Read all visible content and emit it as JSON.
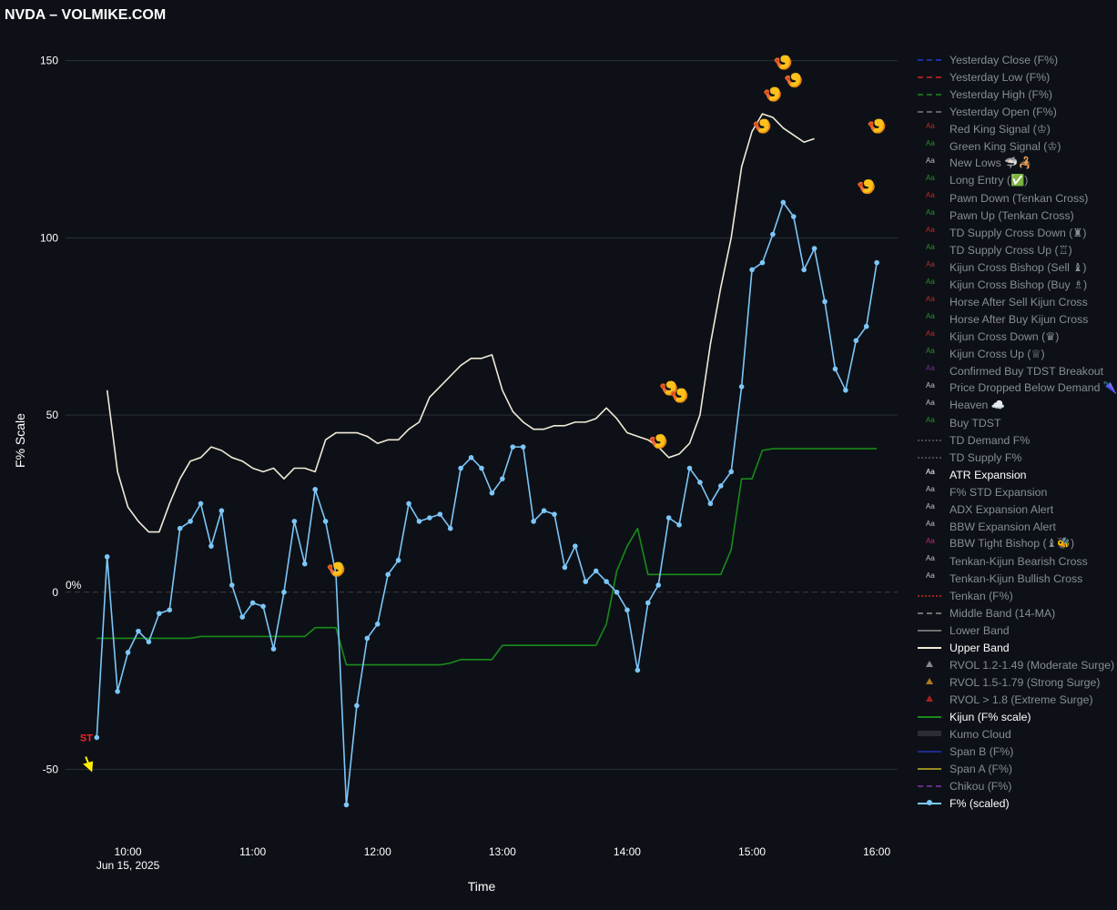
{
  "title": "NVDA – VOLMIKE.COM",
  "chart_data": {
    "type": "line",
    "title": "NVDA – VOLMIKE.COM",
    "xlabel": "Time",
    "ylabel": "F% Scale",
    "ylim": [
      -64,
      153
    ],
    "xlim": [
      "09:30",
      "16:10"
    ],
    "yticks": [
      -50,
      0,
      50,
      100,
      150
    ],
    "xticks": [
      "10:00",
      "11:00",
      "12:00",
      "13:00",
      "14:00",
      "15:00",
      "16:00"
    ],
    "xtick_sublabel": "Jun 15, 2025",
    "zero_label": "0%",
    "grid": true,
    "legend_position": "right",
    "series": [
      {
        "name": "F% (scaled)",
        "color": "#7dc6f8",
        "markers": true,
        "x": [
          "09:45",
          "09:50",
          "09:55",
          "10:00",
          "10:05",
          "10:10",
          "10:15",
          "10:20",
          "10:25",
          "10:30",
          "10:35",
          "10:40",
          "10:45",
          "10:50",
          "10:55",
          "11:00",
          "11:05",
          "11:10",
          "11:15",
          "11:20",
          "11:25",
          "11:30",
          "11:35",
          "11:40",
          "11:45",
          "11:50",
          "11:55",
          "12:00",
          "12:05",
          "12:10",
          "12:15",
          "12:20",
          "12:25",
          "12:30",
          "12:35",
          "12:40",
          "12:45",
          "12:50",
          "12:55",
          "13:00",
          "13:05",
          "13:10",
          "13:15",
          "13:20",
          "13:25",
          "13:30",
          "13:35",
          "13:40",
          "13:45",
          "13:50",
          "13:55",
          "14:00",
          "14:05",
          "14:10",
          "14:15",
          "14:20",
          "14:25",
          "14:30",
          "14:35",
          "14:40",
          "14:45",
          "14:50",
          "14:55",
          "15:00",
          "15:05",
          "15:10",
          "15:15",
          "15:20",
          "15:25",
          "15:30",
          "15:35",
          "15:40",
          "15:45",
          "15:50",
          "15:55",
          "16:00",
          "16:05",
          "16:10",
          "16:15",
          "16:20"
        ],
        "values": [
          -41,
          10,
          -28,
          -17,
          -11,
          -14,
          -6,
          -5,
          18,
          20,
          25,
          13,
          23,
          2,
          -7,
          -3,
          -4,
          -16,
          0,
          20,
          8,
          29,
          20,
          5,
          -60,
          -32,
          -13,
          -9,
          5,
          9,
          25,
          20,
          21,
          22,
          18,
          35,
          38,
          35,
          28,
          32,
          41,
          41,
          20,
          23,
          22,
          7,
          13,
          3,
          6,
          3,
          0,
          -5,
          -22,
          -3,
          2,
          21,
          19,
          35,
          31,
          25,
          30,
          34,
          58,
          91,
          93,
          101,
          110,
          106,
          91,
          97,
          82,
          63,
          57,
          71,
          75,
          93,
          null,
          null,
          null,
          null
        ]
      },
      {
        "name": "Upper Band",
        "color": "#f1ead7",
        "markers": false,
        "x": [
          "09:50",
          "09:55",
          "10:00",
          "10:05",
          "10:10",
          "10:15",
          "10:20",
          "10:25",
          "10:30",
          "10:35",
          "10:40",
          "10:45",
          "10:50",
          "10:55",
          "11:00",
          "11:05",
          "11:10",
          "11:15",
          "11:20",
          "11:25",
          "11:30",
          "11:35",
          "11:40",
          "11:45",
          "11:50",
          "11:55",
          "12:00",
          "12:05",
          "12:10",
          "12:15",
          "12:20",
          "12:25",
          "12:30",
          "12:35",
          "12:40",
          "12:45",
          "12:50",
          "12:55",
          "13:00",
          "13:05",
          "13:10",
          "13:15",
          "13:20",
          "13:25",
          "13:30",
          "13:35",
          "13:40",
          "13:45",
          "13:50",
          "13:55",
          "14:00",
          "14:05",
          "14:10",
          "14:15",
          "14:20",
          "14:25",
          "14:30",
          "14:35",
          "14:40",
          "14:45",
          "14:50",
          "14:55",
          "15:00",
          "15:05",
          "15:10",
          "15:15",
          "15:20",
          "15:25",
          "15:30",
          "15:35",
          "15:40",
          "15:45",
          "15:50",
          "15:55",
          "16:00"
        ],
        "values": [
          57,
          34,
          24,
          20,
          17,
          17,
          25,
          32,
          37,
          38,
          41,
          40,
          38,
          37,
          35,
          34,
          35,
          32,
          35,
          35,
          34,
          43,
          45,
          45,
          45,
          44,
          42,
          43,
          43,
          46,
          48,
          55,
          58,
          61,
          64,
          66,
          66,
          67,
          57,
          51,
          48,
          46,
          46,
          47,
          47,
          48,
          48,
          49,
          52,
          49,
          45,
          44,
          43,
          41,
          38,
          39,
          42,
          50,
          70,
          86,
          100,
          120,
          130,
          135,
          134,
          131,
          129,
          127,
          128,
          null,
          null,
          null,
          null,
          null,
          null
        ]
      },
      {
        "name": "Kijun (F% scale)",
        "color": "#1a8a1a",
        "markers": false,
        "x": [
          "09:45",
          "10:30",
          "10:35",
          "11:00",
          "11:25",
          "11:30",
          "11:35",
          "11:40",
          "11:45",
          "12:30",
          "12:35",
          "12:40",
          "12:45",
          "12:50",
          "12:55",
          "13:00",
          "13:05",
          "13:10",
          "13:15",
          "13:20",
          "13:25",
          "13:30",
          "13:35",
          "13:40",
          "13:45",
          "13:50",
          "13:55",
          "14:00",
          "14:05",
          "14:10",
          "14:15",
          "14:20",
          "14:25",
          "14:30",
          "14:35",
          "14:40",
          "14:45",
          "14:50",
          "14:55",
          "15:00",
          "15:05",
          "15:10",
          "15:15",
          "16:00"
        ],
        "values": [
          -13,
          -13,
          -12.5,
          -12.5,
          -12.5,
          -10,
          -10,
          -10,
          -20.5,
          -20.5,
          -20,
          -19,
          -19,
          -19,
          -19,
          -15,
          -15,
          -15,
          -15,
          -15,
          -15,
          -15,
          -15,
          -15,
          -15,
          -9,
          6,
          13,
          18,
          5,
          5,
          5,
          5,
          5,
          5,
          5,
          5,
          12,
          32,
          32,
          40,
          40.5,
          40.5,
          40.5
        ]
      }
    ],
    "zero_line": {
      "name": "Middle Band (14-MA)",
      "y": 0,
      "style": "dashed"
    },
    "annotations": [
      {
        "text": "ST",
        "x": "09:40",
        "y": -42,
        "color": "#ff2222"
      },
      {
        "type": "arrow",
        "x": "09:41",
        "y": -50,
        "color": "#ffee00"
      },
      {
        "type": "icon",
        "symbol": "🍤",
        "x": "11:40",
        "y": 5
      },
      {
        "type": "icon",
        "symbol": "🍤",
        "x": "14:15",
        "y": 41
      },
      {
        "type": "icon",
        "symbol": "🍤",
        "x": "14:20",
        "y": 56
      },
      {
        "type": "icon",
        "symbol": "🍤",
        "x": "14:25",
        "y": 54
      },
      {
        "type": "icon",
        "symbol": "🍤",
        "x": "15:05",
        "y": 130
      },
      {
        "type": "icon",
        "symbol": "🍤",
        "x": "15:10",
        "y": 139
      },
      {
        "type": "icon",
        "symbol": "🍤",
        "x": "15:15",
        "y": 148
      },
      {
        "type": "icon",
        "symbol": "🍤",
        "x": "15:20",
        "y": 143
      },
      {
        "type": "icon",
        "symbol": "🍤",
        "x": "15:55",
        "y": 113
      },
      {
        "type": "icon",
        "symbol": "🍤",
        "x": "16:00",
        "y": 130
      }
    ]
  },
  "legend": [
    {
      "label": "Yesterday Close (F%)",
      "sym": "dash",
      "color": "#1f2fa8",
      "on": false
    },
    {
      "label": "Yesterday Low (F%)",
      "sym": "dash",
      "color": "#a02020",
      "on": false
    },
    {
      "label": "Yesterday High (F%)",
      "sym": "dash",
      "color": "#1d6b1d",
      "on": false
    },
    {
      "label": "Yesterday Open (F%)",
      "sym": "dash",
      "color": "#606060",
      "on": false
    },
    {
      "label": "Red King Signal (♔)",
      "sym": "aa",
      "color": "#c02828",
      "on": false
    },
    {
      "label": "Green King Signal (♔)",
      "sym": "aa",
      "color": "#2a8f2a",
      "on": false
    },
    {
      "label": "New Lows 🦈🦂",
      "sym": "aa",
      "color": "#c0c0c0",
      "on": false
    },
    {
      "label": "Long Entry (✅)",
      "sym": "aa",
      "color": "#2a8f2a",
      "on": false
    },
    {
      "label": "Pawn Down (Tenkan Cross)",
      "sym": "aa",
      "color": "#c02828",
      "on": false
    },
    {
      "label": "Pawn Up (Tenkan Cross)",
      "sym": "aa",
      "color": "#2a8f2a",
      "on": false
    },
    {
      "label": "TD Supply Cross Down (♜)",
      "sym": "aa",
      "color": "#c02828",
      "on": false
    },
    {
      "label": "TD Supply Cross Up (♖)",
      "sym": "aa",
      "color": "#2a8f2a",
      "on": false
    },
    {
      "label": "Kijun Cross Bishop (Sell ♝)",
      "sym": "aa",
      "color": "#c02828",
      "on": false
    },
    {
      "label": "Kijun Cross Bishop (Buy ♗)",
      "sym": "aa",
      "color": "#2a8f2a",
      "on": false
    },
    {
      "label": "Horse After Sell Kijun Cross",
      "sym": "aa",
      "color": "#c02828",
      "on": false
    },
    {
      "label": "Horse After Buy Kijun Cross",
      "sym": "aa",
      "color": "#2a8f2a",
      "on": false
    },
    {
      "label": "Kijun Cross Down (♛)",
      "sym": "aa",
      "color": "#c02828",
      "on": false
    },
    {
      "label": "Kijun Cross Up (♕)",
      "sym": "aa",
      "color": "#2a8f2a",
      "on": false
    },
    {
      "label": "Confirmed Buy TDST Breakout",
      "sym": "aa",
      "color": "#7a2a9a",
      "on": false
    },
    {
      "label": "Price Dropped Below Demand 🌂",
      "sym": "aa",
      "color": "#c0c0c0",
      "on": false
    },
    {
      "label": "Heaven ☁️",
      "sym": "aa",
      "color": "#c0c0c0",
      "on": false
    },
    {
      "label": "Buy TDST",
      "sym": "aa",
      "color": "#2a8f2a",
      "on": false
    },
    {
      "label": "TD Demand F%",
      "sym": "dot",
      "color": "#4a4a4a",
      "on": false
    },
    {
      "label": "TD Supply F%",
      "sym": "dot",
      "color": "#4a4a4a",
      "on": false
    },
    {
      "label": "ATR Expansion",
      "sym": "aa",
      "color": "#ffffff",
      "on": true
    },
    {
      "label": "F% STD Expansion",
      "sym": "aa",
      "color": "#c0c0c0",
      "on": false
    },
    {
      "label": "ADX Expansion Alert",
      "sym": "aa",
      "color": "#c0c0c0",
      "on": false
    },
    {
      "label": "BBW Expansion Alert",
      "sym": "aa",
      "color": "#c0c0c0",
      "on": false
    },
    {
      "label": "BBW Tight Bishop (♝🐝)",
      "sym": "aa",
      "color": "#c02878",
      "on": false
    },
    {
      "label": "Tenkan-Kijun Bearish Cross",
      "sym": "aa",
      "color": "#c0c0c0",
      "on": false
    },
    {
      "label": "Tenkan-Kijun Bullish Cross",
      "sym": "aa",
      "color": "#c0c0c0",
      "on": false
    },
    {
      "label": "Tenkan (F%)",
      "sym": "dot",
      "color": "#a02020",
      "on": false
    },
    {
      "label": "Middle Band (14-MA)",
      "sym": "dash",
      "color": "#707070",
      "on": false
    },
    {
      "label": "Lower Band",
      "sym": "line",
      "color": "#707070",
      "on": false
    },
    {
      "label": "Upper Band",
      "sym": "line",
      "color": "#f1ead7",
      "on": true
    },
    {
      "label": "RVOL 1.2-1.49 (Moderate Surge)",
      "sym": "tri",
      "color": "#8a8a8a",
      "on": false
    },
    {
      "label": "RVOL 1.5-1.79 (Strong Surge)",
      "sym": "tri",
      "color": "#b07a20",
      "on": false
    },
    {
      "label": "RVOL > 1.8 (Extreme Surge)",
      "sym": "tri",
      "color": "#a82020",
      "on": false
    },
    {
      "label": "Kijun (F% scale)",
      "sym": "line",
      "color": "#1a8a1a",
      "on": true
    },
    {
      "label": "Kumo Cloud",
      "sym": "band",
      "color": "#2a2d33",
      "on": false
    },
    {
      "label": "Span B (F%)",
      "sym": "line",
      "color": "#1d2a8a",
      "on": false
    },
    {
      "label": "Span A (F%)",
      "sym": "line",
      "color": "#9a8a20",
      "on": false
    },
    {
      "label": "Chikou (F%)",
      "sym": "dash",
      "color": "#6a2a8a",
      "on": false
    },
    {
      "label": "F% (scaled)",
      "sym": "linedot",
      "color": "#7dc6f8",
      "on": true
    }
  ]
}
